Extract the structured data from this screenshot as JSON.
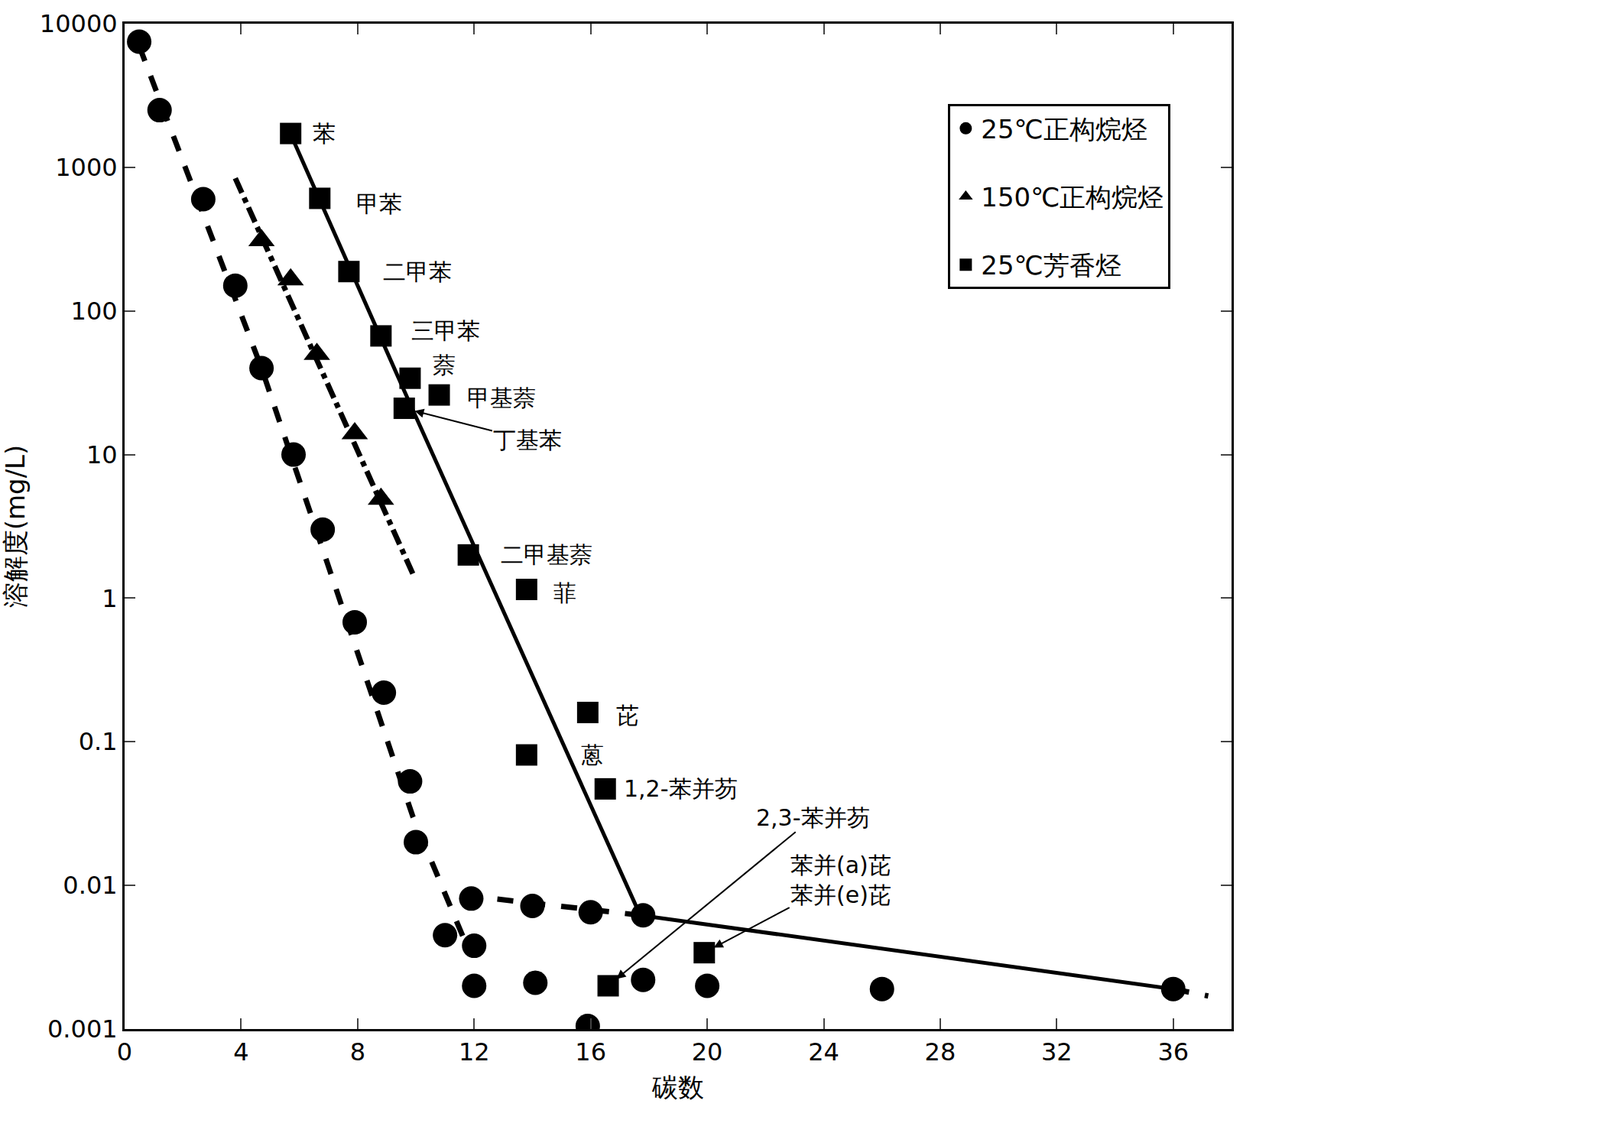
{
  "chart_data": {
    "type": "scatter",
    "x_label": "碳数",
    "y_label": "溶解度(mg/L)",
    "log": "y",
    "grid": false,
    "legend": "top right",
    "xlim": [
      0,
      38
    ],
    "xticks": [
      0,
      4,
      8,
      12,
      16,
      20,
      24,
      28,
      32,
      36
    ],
    "ylim": [
      0.001,
      10000
    ],
    "yticks": [
      0.001,
      0.01,
      0.1,
      1,
      10,
      100,
      1000,
      10000
    ],
    "series": [
      {
        "name": "25℃正构烷烃",
        "color": "#000000",
        "marker": "circle",
        "x": [
          0.5,
          1.2,
          2.7,
          3.8,
          4.7,
          5.8,
          6.8,
          7.9,
          8.9,
          9.8,
          10.0,
          11.0,
          12.0,
          11.9,
          12.0,
          14.0,
          14.1,
          16.0,
          15.9,
          17.8,
          17.8,
          20.0,
          26.0,
          36.0
        ],
        "values": [
          7500,
          2500,
          600,
          150,
          40,
          10,
          3,
          0.68,
          0.22,
          0.053,
          0.02,
          0.0045,
          0.0038,
          0.0081,
          0.002,
          0.0072,
          0.0021,
          0.0065,
          0.00105,
          0.0062,
          0.0022,
          0.002,
          0.0019,
          0.0019
        ]
      },
      {
        "name": "150℃正构烷烃",
        "color": "#000000",
        "marker": "triangle-up",
        "x": [
          4.7,
          5.7,
          6.6,
          7.9,
          8.8
        ],
        "values": [
          310,
          165,
          50,
          14,
          4.9
        ]
      },
      {
        "name": "25℃芳香烃",
        "color": "#000000",
        "marker": "square",
        "x": [
          5.7,
          6.7,
          7.7,
          8.8,
          9.8,
          10.8,
          9.6,
          11.8,
          13.8,
          15.9,
          13.8,
          16.5,
          16.6,
          19.9
        ],
        "values": [
          1720,
          608,
          188,
          67,
          34,
          26,
          21,
          2.0,
          1.15,
          0.16,
          0.081,
          0.047,
          0.002,
          0.0034
        ],
        "labels": [
          "苯",
          "甲苯",
          "二甲苯",
          "三甲苯",
          "萘",
          "甲基萘",
          "丁基苯",
          "二甲基萘",
          "菲",
          "芘",
          "蒽",
          "1,2-苯并芴",
          "2,3-苯并芴",
          "苯并(a)芘\n苯并(e)芘"
        ]
      }
    ],
    "trend_lines": [
      {
        "x": [
          0.5,
          4.7,
          9.9,
          11.7
        ],
        "y": [
          7000,
          40,
          0.03,
          0.004
        ],
        "line_style": "dash"
      },
      {
        "x": [
          11.7,
          17.7
        ],
        "y": [
          0.0085,
          0.0062
        ],
        "line_style": "dash"
      },
      {
        "x": [
          36,
          37.2
        ],
        "y": [
          0.0019,
          0.0017
        ],
        "line_style": "dash"
      },
      {
        "x": [
          3.8,
          9.9
        ],
        "y": [
          840,
          1.47
        ],
        "line_style": "dashdot"
      },
      {
        "x": [
          5.7,
          9.7,
          17.7,
          36
        ],
        "y": [
          1700,
          25,
          0.0062,
          0.0019
        ],
        "line_style": "solid"
      }
    ]
  }
}
